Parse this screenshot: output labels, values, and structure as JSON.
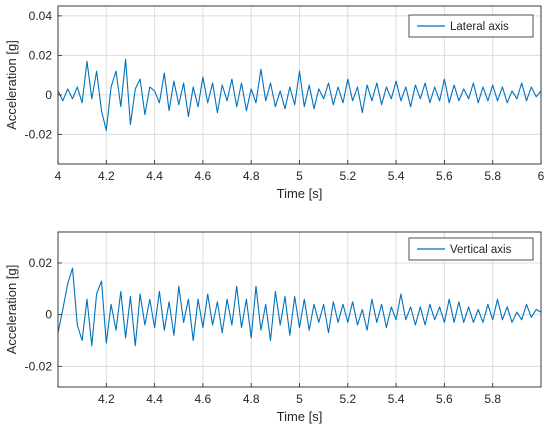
{
  "colors": {
    "series": "#0072BD",
    "axis": "#262626",
    "grid": "#dcdcdc"
  },
  "chart_data": [
    {
      "type": "line",
      "xlabel": "Time [s]",
      "ylabel": "Acceleration [g]",
      "xlim": [
        4,
        6
      ],
      "ylim": [
        -0.035,
        0.045
      ],
      "xticks": [
        4,
        4.2,
        4.4,
        4.6,
        4.8,
        5,
        5.2,
        5.4,
        5.6,
        5.8,
        6
      ],
      "xtick_labels": [
        "4",
        "4.2",
        "4.4",
        "4.6",
        "4.8",
        "5",
        "5.2",
        "5.4",
        "5.6",
        "5.8",
        "6"
      ],
      "yticks": [
        -0.02,
        0,
        0.02,
        0.04
      ],
      "ytick_labels": [
        "-0.02",
        "0",
        "0.02",
        "0.04"
      ],
      "grid": true,
      "legend_position": "top-right",
      "series": [
        {
          "name": "Lateral axis",
          "color": "#0072BD",
          "x": [
            4.0,
            4.02,
            4.04,
            4.06,
            4.08,
            4.1,
            4.12,
            4.14,
            4.16,
            4.18,
            4.2,
            4.22,
            4.24,
            4.26,
            4.28,
            4.3,
            4.32,
            4.34,
            4.36,
            4.38,
            4.4,
            4.42,
            4.44,
            4.46,
            4.48,
            4.5,
            4.52,
            4.54,
            4.56,
            4.58,
            4.6,
            4.62,
            4.64,
            4.66,
            4.68,
            4.7,
            4.72,
            4.74,
            4.76,
            4.78,
            4.8,
            4.82,
            4.84,
            4.86,
            4.88,
            4.9,
            4.92,
            4.94,
            4.96,
            4.98,
            5.0,
            5.02,
            5.04,
            5.06,
            5.08,
            5.1,
            5.12,
            5.14,
            5.16,
            5.18,
            5.2,
            5.22,
            5.24,
            5.26,
            5.28,
            5.3,
            5.32,
            5.34,
            5.36,
            5.38,
            5.4,
            5.42,
            5.44,
            5.46,
            5.48,
            5.5,
            5.52,
            5.54,
            5.56,
            5.58,
            5.6,
            5.62,
            5.64,
            5.66,
            5.68,
            5.7,
            5.72,
            5.74,
            5.76,
            5.78,
            5.8,
            5.82,
            5.84,
            5.86,
            5.88,
            5.9,
            5.92,
            5.94,
            5.96,
            5.98,
            6.0
          ],
          "y": [
            0.002,
            -0.003,
            0.003,
            -0.002,
            0.004,
            -0.004,
            0.017,
            -0.002,
            0.012,
            -0.008,
            -0.018,
            0.004,
            0.012,
            -0.006,
            0.018,
            -0.015,
            0.003,
            0.008,
            -0.01,
            0.004,
            0.002,
            -0.004,
            0.011,
            -0.008,
            0.007,
            -0.005,
            0.006,
            -0.011,
            0.004,
            -0.006,
            0.009,
            -0.004,
            0.006,
            -0.009,
            0.005,
            -0.003,
            0.008,
            -0.006,
            0.006,
            -0.008,
            0.003,
            -0.004,
            0.013,
            -0.003,
            0.006,
            -0.006,
            0.002,
            -0.007,
            0.004,
            -0.005,
            0.012,
            -0.006,
            0.005,
            -0.007,
            0.003,
            -0.002,
            0.006,
            -0.005,
            0.004,
            -0.004,
            0.008,
            -0.003,
            0.004,
            -0.009,
            0.005,
            -0.003,
            0.006,
            -0.005,
            0.004,
            -0.002,
            0.007,
            -0.003,
            0.004,
            -0.006,
            0.005,
            -0.002,
            0.006,
            -0.004,
            0.004,
            -0.003,
            0.008,
            -0.004,
            0.005,
            -0.003,
            0.003,
            -0.002,
            0.006,
            -0.004,
            0.004,
            -0.003,
            0.005,
            -0.003,
            0.004,
            -0.004,
            0.002,
            -0.002,
            0.006,
            -0.003,
            0.004,
            -0.001,
            0.002
          ]
        }
      ]
    },
    {
      "type": "line",
      "xlabel": "Time [s]",
      "ylabel": "Acceleration [g]",
      "xlim": [
        4.0,
        6.0
      ],
      "ylim": [
        -0.028,
        0.032
      ],
      "xticks": [
        4.2,
        4.4,
        4.6,
        4.8,
        5,
        5.2,
        5.4,
        5.6,
        5.8
      ],
      "xtick_labels": [
        "4.2",
        "4.4",
        "4.6",
        "4.8",
        "5",
        "5.2",
        "5.4",
        "5.6",
        "5.8"
      ],
      "yticks": [
        -0.02,
        0,
        0.02
      ],
      "ytick_labels": [
        "-0.02",
        "0",
        "0.02"
      ],
      "grid": true,
      "legend_position": "top-right",
      "series": [
        {
          "name": "Vertical axis",
          "color": "#0072BD",
          "x": [
            4.0,
            4.02,
            4.04,
            4.06,
            4.08,
            4.1,
            4.12,
            4.14,
            4.16,
            4.18,
            4.2,
            4.22,
            4.24,
            4.26,
            4.28,
            4.3,
            4.32,
            4.34,
            4.36,
            4.38,
            4.4,
            4.42,
            4.44,
            4.46,
            4.48,
            4.5,
            4.52,
            4.54,
            4.56,
            4.58,
            4.6,
            4.62,
            4.64,
            4.66,
            4.68,
            4.7,
            4.72,
            4.74,
            4.76,
            4.78,
            4.8,
            4.82,
            4.84,
            4.86,
            4.88,
            4.9,
            4.92,
            4.94,
            4.96,
            4.98,
            5.0,
            5.02,
            5.04,
            5.06,
            5.08,
            5.1,
            5.12,
            5.14,
            5.16,
            5.18,
            5.2,
            5.22,
            5.24,
            5.26,
            5.28,
            5.3,
            5.32,
            5.34,
            5.36,
            5.38,
            5.4,
            5.42,
            5.44,
            5.46,
            5.48,
            5.5,
            5.52,
            5.54,
            5.56,
            5.58,
            5.6,
            5.62,
            5.64,
            5.66,
            5.68,
            5.7,
            5.72,
            5.74,
            5.76,
            5.78,
            5.8,
            5.82,
            5.84,
            5.86,
            5.88,
            5.9,
            5.92,
            5.94,
            5.96,
            5.98,
            6.0
          ],
          "y": [
            -0.007,
            0.002,
            0.012,
            0.018,
            -0.004,
            -0.01,
            0.006,
            -0.012,
            0.008,
            0.013,
            -0.011,
            0.004,
            -0.006,
            0.009,
            -0.009,
            0.007,
            -0.012,
            0.008,
            -0.004,
            0.006,
            -0.005,
            0.009,
            -0.006,
            0.005,
            -0.008,
            0.011,
            -0.003,
            0.006,
            -0.01,
            0.006,
            -0.005,
            0.008,
            -0.004,
            0.005,
            -0.007,
            0.006,
            -0.004,
            0.011,
            -0.005,
            0.006,
            -0.009,
            0.011,
            -0.006,
            0.004,
            -0.01,
            0.009,
            -0.004,
            0.007,
            -0.008,
            0.007,
            -0.005,
            0.006,
            -0.006,
            0.004,
            -0.003,
            0.004,
            -0.007,
            0.005,
            -0.003,
            0.004,
            -0.003,
            0.005,
            -0.004,
            0.002,
            -0.006,
            0.006,
            -0.003,
            0.004,
            -0.005,
            0.003,
            -0.002,
            0.008,
            -0.002,
            0.003,
            -0.004,
            0.003,
            -0.004,
            0.004,
            -0.002,
            0.003,
            -0.003,
            0.006,
            -0.003,
            0.005,
            -0.003,
            0.003,
            -0.003,
            0.002,
            -0.003,
            0.004,
            -0.002,
            0.006,
            -0.002,
            0.003,
            -0.003,
            0.001,
            -0.002,
            0.004,
            -0.001,
            0.002,
            0.001
          ]
        }
      ]
    }
  ]
}
